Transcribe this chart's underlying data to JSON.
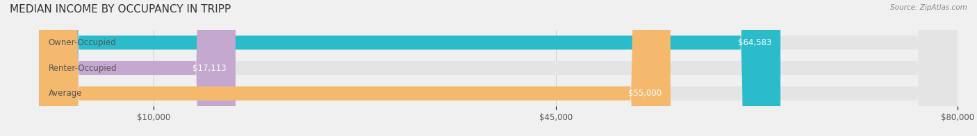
{
  "title": "MEDIAN INCOME BY OCCUPANCY IN TRIPP",
  "source": "Source: ZipAtlas.com",
  "categories": [
    "Owner-Occupied",
    "Renter-Occupied",
    "Average"
  ],
  "values": [
    64583,
    17113,
    55000
  ],
  "labels": [
    "$64,583",
    "$17,113",
    "$55,000"
  ],
  "bar_colors": [
    "#2bbccc",
    "#c4a8d0",
    "#f5b96e"
  ],
  "background_color": "#f0f0f0",
  "bar_bg_color": "#e4e4e4",
  "xlim": [
    0,
    80000
  ],
  "xticks": [
    10000,
    45000,
    80000
  ],
  "xtick_labels": [
    "$10,000",
    "$45,000",
    "$80,000"
  ],
  "title_fontsize": 11,
  "label_fontsize": 8.5,
  "tick_fontsize": 8.5,
  "bar_height": 0.55,
  "bar_label_color": "#ffffff",
  "category_label_color": "#555555",
  "figsize": [
    14.06,
    1.96
  ],
  "dpi": 100
}
